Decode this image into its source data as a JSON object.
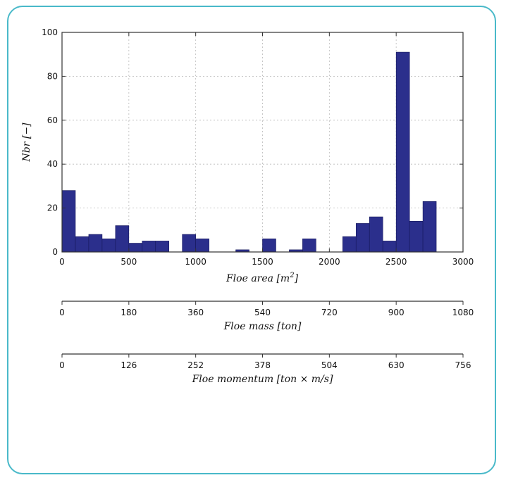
{
  "chart_data": {
    "type": "bar",
    "ylabel": "Nbr [−]",
    "xlabel": {
      "prefix": "Floe area [m",
      "sup": "2",
      "suffix": "]"
    },
    "xlim": [
      0,
      3000
    ],
    "ylim": [
      0,
      100
    ],
    "xticks": [
      0,
      500,
      1000,
      1500,
      2000,
      2500,
      3000
    ],
    "yticks": [
      0,
      20,
      40,
      60,
      80,
      100
    ],
    "grid": true,
    "bar_color": "#2b2f8c",
    "bin_width": 100,
    "bins": [
      {
        "x": 0,
        "value": 28
      },
      {
        "x": 100,
        "value": 7
      },
      {
        "x": 200,
        "value": 8
      },
      {
        "x": 300,
        "value": 6
      },
      {
        "x": 400,
        "value": 12
      },
      {
        "x": 500,
        "value": 4
      },
      {
        "x": 600,
        "value": 5
      },
      {
        "x": 700,
        "value": 5
      },
      {
        "x": 800,
        "value": 0
      },
      {
        "x": 900,
        "value": 8
      },
      {
        "x": 1000,
        "value": 6
      },
      {
        "x": 1100,
        "value": 0
      },
      {
        "x": 1200,
        "value": 0
      },
      {
        "x": 1300,
        "value": 1
      },
      {
        "x": 1400,
        "value": 0
      },
      {
        "x": 1500,
        "value": 6
      },
      {
        "x": 1600,
        "value": 0
      },
      {
        "x": 1700,
        "value": 1
      },
      {
        "x": 1800,
        "value": 6
      },
      {
        "x": 1900,
        "value": 0
      },
      {
        "x": 2000,
        "value": 0
      },
      {
        "x": 2100,
        "value": 7
      },
      {
        "x": 2200,
        "value": 13
      },
      {
        "x": 2300,
        "value": 16
      },
      {
        "x": 2400,
        "value": 5
      },
      {
        "x": 2500,
        "value": 91
      },
      {
        "x": 2600,
        "value": 14
      },
      {
        "x": 2700,
        "value": 23
      }
    ],
    "secondary_axes": [
      {
        "label": "Floe mass [ton]",
        "ticks": [
          "0",
          "180",
          "360",
          "540",
          "720",
          "900",
          "1080"
        ]
      },
      {
        "label": "Floe momentum [ton × m/s]",
        "ticks": [
          "0",
          "126",
          "252",
          "378",
          "504",
          "630",
          "756"
        ]
      }
    ]
  }
}
